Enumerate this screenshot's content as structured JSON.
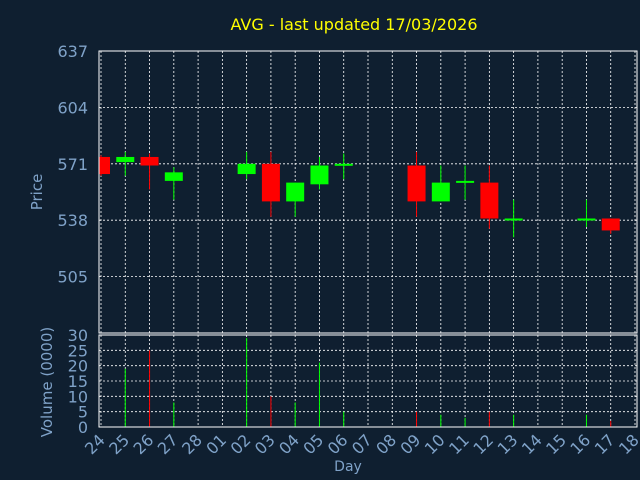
{
  "chart_data": {
    "type": "candlestick",
    "title": "AVG - last updated 17/03/2026",
    "price_label": "Price",
    "volume_label": "Volume (0000)",
    "xlabel": "Day",
    "price_ylim": [
      472,
      637
    ],
    "price_ticks": [
      "637",
      "604",
      "571",
      "538",
      "505"
    ],
    "volume_ylim": [
      0,
      30
    ],
    "volume_ticks": [
      "30",
      "25",
      "20",
      "15",
      "10",
      "5",
      "0"
    ],
    "grid": true,
    "x_ticks": [
      "24",
      "25",
      "26",
      "27",
      "28",
      "01",
      "02",
      "03",
      "04",
      "05",
      "06",
      "07",
      "08",
      "09",
      "10",
      "11",
      "12",
      "13",
      "14",
      "15",
      "16",
      "17",
      "18"
    ],
    "candles": [
      {
        "day": "24",
        "open": 575,
        "high": 576,
        "low": 564,
        "close": 565,
        "volume": 0
      },
      {
        "day": "25",
        "open": 572,
        "high": 578,
        "low": 564,
        "close": 575,
        "volume": 19
      },
      {
        "day": "26",
        "open": 575,
        "high": 577,
        "low": 556,
        "close": 570,
        "volume": 25
      },
      {
        "day": "27",
        "open": 561,
        "high": 569,
        "low": 550,
        "close": 566,
        "volume": 8
      },
      {
        "day": "02",
        "open": 565,
        "high": 578,
        "low": 562,
        "close": 571,
        "volume": 29
      },
      {
        "day": "03",
        "open": 571,
        "high": 578,
        "low": 540,
        "close": 549,
        "volume": 10
      },
      {
        "day": "04",
        "open": 549,
        "high": 560,
        "low": 540,
        "close": 560,
        "volume": 8
      },
      {
        "day": "05",
        "open": 559,
        "high": 575,
        "low": 556,
        "close": 570,
        "volume": 21
      },
      {
        "day": "06",
        "open": 570,
        "high": 577,
        "low": 562,
        "close": 571,
        "volume": 5
      },
      {
        "day": "09",
        "open": 570,
        "high": 578,
        "low": 540,
        "close": 549,
        "volume": 5
      },
      {
        "day": "10",
        "open": 549,
        "high": 570,
        "low": 549,
        "close": 560,
        "volume": 4
      },
      {
        "day": "11",
        "open": 560,
        "high": 570,
        "low": 550,
        "close": 561,
        "volume": 3
      },
      {
        "day": "12",
        "open": 560,
        "high": 570,
        "low": 533,
        "close": 539,
        "volume": 5
      },
      {
        "day": "13",
        "open": 538,
        "high": 550,
        "low": 528,
        "close": 539,
        "volume": 4
      },
      {
        "day": "16",
        "open": 538,
        "high": 550,
        "low": 534,
        "close": 539,
        "volume": 4
      },
      {
        "day": "17",
        "open": 539,
        "high": 539,
        "low": 530,
        "close": 532,
        "volume": 2
      }
    ]
  },
  "colors": {
    "background": "#0f1f30",
    "title": "#ffff00",
    "axis_text": "#7fa2c8",
    "grid": "#ffffff",
    "up": "#00ff00",
    "down": "#ff0000",
    "frame": "#ffffff"
  }
}
